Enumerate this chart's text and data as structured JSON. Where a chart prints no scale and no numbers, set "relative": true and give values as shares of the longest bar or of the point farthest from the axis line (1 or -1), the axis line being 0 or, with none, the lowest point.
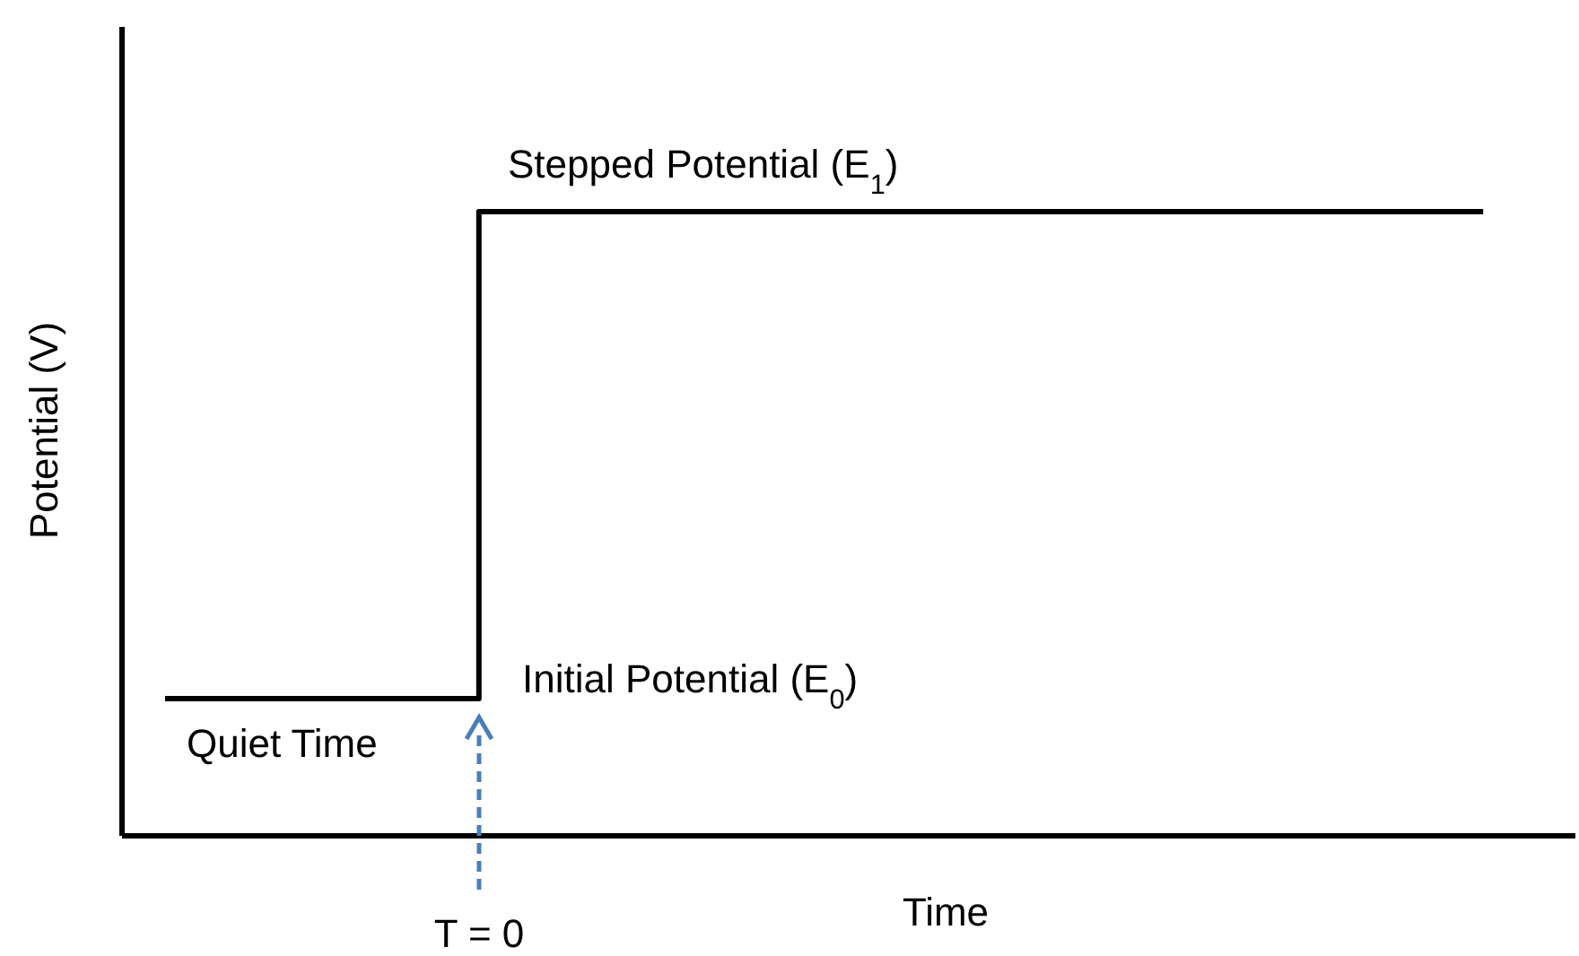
{
  "chart_data": {
    "type": "step",
    "relative": true,
    "xlabel": "Time",
    "ylabel": "Potential (V)",
    "categories": [
      null,
      null,
      null,
      null,
      null,
      null,
      null,
      null,
      null,
      null,
      null,
      null,
      null,
      null,
      null,
      null,
      null,
      null,
      null,
      null,
      null,
      null
    ],
    "series": [
      {
        "color": "#000000",
        "values": [
          0.22,
          0.22,
          0.22,
          0.22,
          0.22,
          1,
          1,
          1,
          1,
          1,
          1,
          1,
          1,
          1,
          1,
          1,
          1,
          1,
          1,
          1,
          1,
          1
        ]
      }
    ],
    "annotations": [
      "Stepped Potential (E$_{1}$)",
      "Initial Potential (E$_{0}$)",
      "Quiet Time",
      "T = 0"
    ],
    "grid": false,
    "legend": false,
    "marker": "none"
  }
}
